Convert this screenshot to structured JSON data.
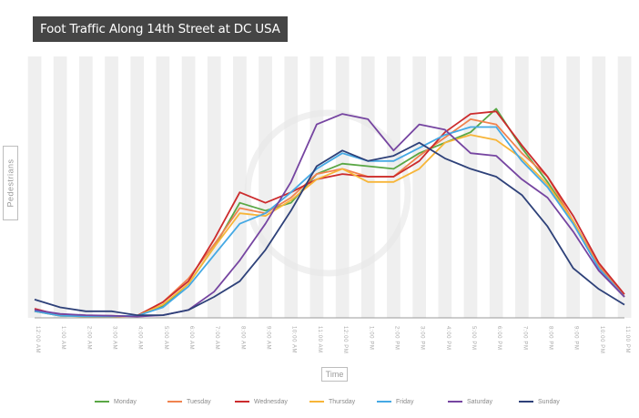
{
  "title": "Foot Traffic Along 14th Street at DC USA",
  "chart_data": {
    "type": "line",
    "title": "Foot Traffic Along 14th Street at DC USA",
    "xlabel": "Time",
    "ylabel": "Pedestrians",
    "categories": [
      "12:00 AM",
      "1:00 AM",
      "2:00 AM",
      "3:00 AM",
      "4:00 AM",
      "5:00 AM",
      "6:00 AM",
      "7:00 AM",
      "8:00 AM",
      "9:00 AM",
      "10:00 AM",
      "11:00 AM",
      "12:00 PM",
      "1:00 PM",
      "2:00 PM",
      "3:00 PM",
      "4:00 PM",
      "5:00 PM",
      "6:00 PM",
      "7:00 PM",
      "8:00 PM",
      "9:00 PM",
      "10:00 PM",
      "11:00 PM"
    ],
    "ylim": [
      0,
      100
    ],
    "grid": "alternating vertical bands",
    "legend_position": "bottom",
    "series": [
      {
        "name": "Monday",
        "color": "#5aa745",
        "values": [
          2.5,
          0.8,
          0.6,
          0.6,
          0.8,
          4.5,
          13,
          27,
          44,
          41,
          44,
          55,
          59,
          58,
          57,
          63,
          67,
          71,
          80,
          65,
          52,
          37,
          20,
          8
        ]
      },
      {
        "name": "Tuesday",
        "color": "#f0834f",
        "values": [
          3,
          0.9,
          0.6,
          0.6,
          0.8,
          6,
          15,
          28,
          42,
          40,
          46,
          55,
          57,
          54,
          54,
          62,
          69,
          76,
          74,
          63,
          54,
          37,
          20,
          8
        ]
      },
      {
        "name": "Wednesday",
        "color": "#cc2b2d",
        "values": [
          3.5,
          1,
          0.8,
          0.5,
          0.8,
          6,
          14,
          30,
          48,
          44,
          48,
          53,
          55,
          54,
          54,
          60,
          71,
          78,
          79,
          66,
          54,
          39,
          21,
          9
        ]
      },
      {
        "name": "Thursday",
        "color": "#f7b538",
        "values": [
          2.5,
          0.8,
          0.5,
          0.5,
          0.7,
          5,
          13,
          27,
          40,
          39,
          45,
          53,
          57,
          52,
          52,
          57,
          67,
          70,
          68,
          61,
          51,
          37,
          19,
          8
        ]
      },
      {
        "name": "Friday",
        "color": "#45a9e4",
        "values": [
          2.5,
          0.8,
          0.6,
          0.6,
          0.8,
          4,
          12,
          24,
          36,
          40,
          48,
          57,
          63,
          60,
          60,
          65,
          70,
          73,
          73,
          60,
          50,
          36,
          19,
          8
        ]
      },
      {
        "name": "Saturday",
        "color": "#7645a1",
        "values": [
          3,
          1.5,
          1,
          0.8,
          0.5,
          1,
          3,
          10,
          22,
          36,
          52,
          74,
          78,
          76,
          64,
          74,
          72,
          63,
          62,
          53,
          46,
          33,
          18,
          8
        ]
      },
      {
        "name": "Sunday",
        "color": "#2e4179",
        "values": [
          7,
          4,
          2.5,
          2.5,
          1,
          1,
          3,
          8,
          14,
          26,
          41,
          58,
          64,
          60,
          62,
          67,
          61,
          57,
          54,
          47,
          35,
          19,
          11,
          5
        ]
      }
    ]
  }
}
